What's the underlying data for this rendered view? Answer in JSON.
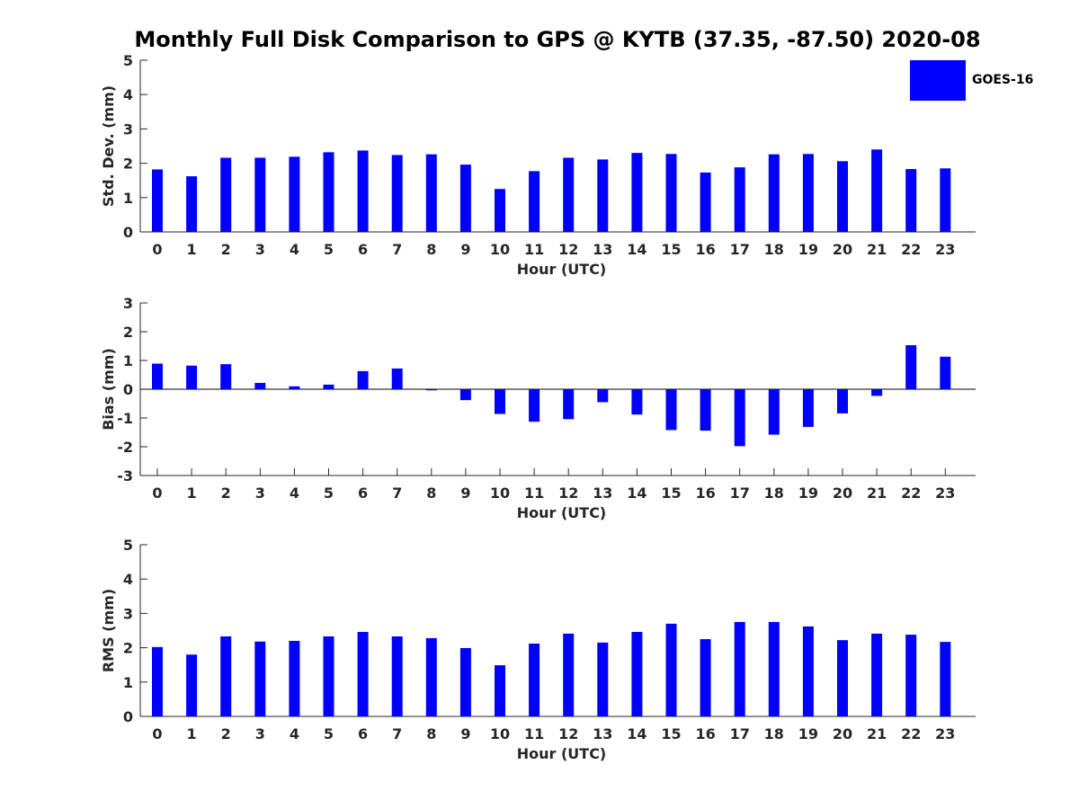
{
  "title": "Monthly Full Disk Comparison to GPS @ KYTB (37.35, -87.50) 2020-08",
  "legend": {
    "label": "GOES-16",
    "color": "#0000ff"
  },
  "chart_data": [
    {
      "type": "bar",
      "title": "Monthly Full Disk Comparison to GPS @ KYTB (37.35, -87.50) 2020-08",
      "xlabel": "Hour (UTC)",
      "ylabel": "Std. Dev. (mm)",
      "ylim": [
        0,
        5
      ],
      "yticks": [
        0,
        1,
        2,
        3,
        4,
        5
      ],
      "categories": [
        "0",
        "1",
        "2",
        "3",
        "4",
        "5",
        "6",
        "7",
        "8",
        "9",
        "10",
        "11",
        "12",
        "13",
        "14",
        "15",
        "16",
        "17",
        "18",
        "19",
        "20",
        "21",
        "22",
        "23"
      ],
      "series": [
        {
          "name": "GOES-16",
          "color": "#0000ff",
          "values": [
            1.82,
            1.62,
            2.16,
            2.16,
            2.19,
            2.32,
            2.37,
            2.24,
            2.26,
            1.96,
            1.25,
            1.77,
            2.16,
            2.11,
            2.3,
            2.27,
            1.73,
            1.88,
            2.26,
            2.27,
            2.06,
            2.4,
            1.83,
            1.85
          ]
        }
      ],
      "legend": "top-right"
    },
    {
      "type": "bar",
      "xlabel": "Hour (UTC)",
      "ylabel": "Bias (mm)",
      "ylim": [
        -3,
        3
      ],
      "yticks": [
        -3,
        -2,
        -1,
        0,
        1,
        2,
        3
      ],
      "categories": [
        "0",
        "1",
        "2",
        "3",
        "4",
        "5",
        "6",
        "7",
        "8",
        "9",
        "10",
        "11",
        "12",
        "13",
        "14",
        "15",
        "16",
        "17",
        "18",
        "19",
        "20",
        "21",
        "22",
        "23"
      ],
      "series": [
        {
          "name": "GOES-16",
          "color": "#0000ff",
          "values": [
            0.89,
            0.82,
            0.87,
            0.22,
            0.1,
            0.16,
            0.63,
            0.72,
            -0.04,
            -0.38,
            -0.86,
            -1.13,
            -1.04,
            -0.45,
            -0.88,
            -1.42,
            -1.44,
            -1.98,
            -1.58,
            -1.31,
            -0.84,
            -0.23,
            1.53,
            1.13
          ]
        }
      ]
    },
    {
      "type": "bar",
      "xlabel": "Hour (UTC)",
      "ylabel": "RMS (mm)",
      "ylim": [
        0,
        5
      ],
      "yticks": [
        0,
        1,
        2,
        3,
        4,
        5
      ],
      "categories": [
        "0",
        "1",
        "2",
        "3",
        "4",
        "5",
        "6",
        "7",
        "8",
        "9",
        "10",
        "11",
        "12",
        "13",
        "14",
        "15",
        "16",
        "17",
        "18",
        "19",
        "20",
        "21",
        "22",
        "23"
      ],
      "series": [
        {
          "name": "GOES-16",
          "color": "#0000ff",
          "values": [
            2.02,
            1.8,
            2.33,
            2.18,
            2.2,
            2.33,
            2.46,
            2.33,
            2.28,
            1.99,
            1.49,
            2.12,
            2.41,
            2.15,
            2.46,
            2.7,
            2.25,
            2.75,
            2.75,
            2.62,
            2.22,
            2.41,
            2.38,
            2.17
          ]
        }
      ]
    }
  ]
}
